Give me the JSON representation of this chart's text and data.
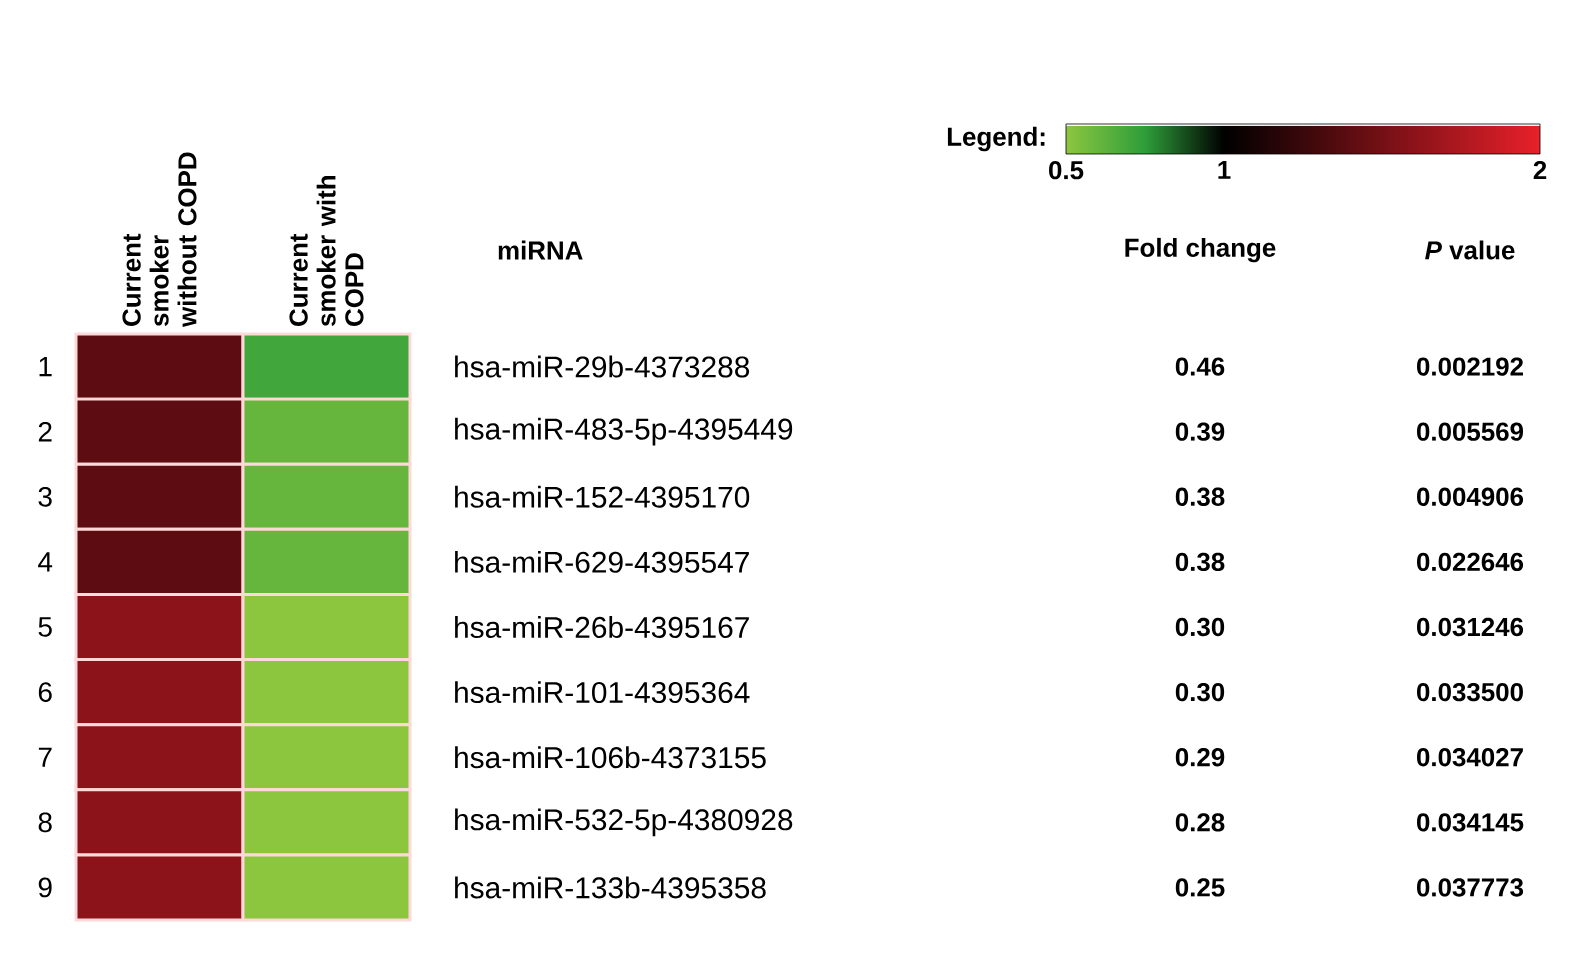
{
  "chart_data": {
    "type": "heatmap",
    "categories": [
      "Current smoker without COPD",
      "Current smoker with COPD"
    ],
    "y_categories": [
      "1",
      "2",
      "3",
      "4",
      "5",
      "6",
      "7",
      "8",
      "9"
    ],
    "y2_categories": [
      "hsa-miR-29b-4373288",
      "hsa-miR-483-5p-4395449",
      "hsa-miR-152-4395170",
      "hsa-miR-629-4395547",
      "hsa-miR-26b-4395167",
      "hsa-miR-101-4395364",
      "hsa-miR-106b-4373155",
      "hsa-miR-532-5p-4380928",
      "hsa-miR-133b-4395358"
    ],
    "cells": [
      [
        1.4,
        0.7
      ],
      [
        1.4,
        0.6
      ],
      [
        1.4,
        0.6
      ],
      [
        1.4,
        0.6
      ],
      [
        1.6,
        0.5
      ],
      [
        1.6,
        0.5
      ],
      [
        1.6,
        0.5
      ],
      [
        1.6,
        0.5
      ],
      [
        1.6,
        0.5
      ]
    ],
    "clabel": "Legend:",
    "clim": [
      0.5,
      2
    ],
    "cticks": [
      0.5,
      1,
      2
    ],
    "annotations": [
      "miRNA",
      "Fold change",
      "*P* value",
      "0.46",
      "0.39",
      "0.38",
      "0.38",
      "0.30",
      "0.30",
      "0.29",
      "0.28",
      "0.25",
      "0.002192",
      "0.005569",
      "0.004906",
      "0.022646",
      "0.031246",
      "0.033500",
      "0.034027",
      "0.034145",
      "0.037773"
    ]
  }
}
